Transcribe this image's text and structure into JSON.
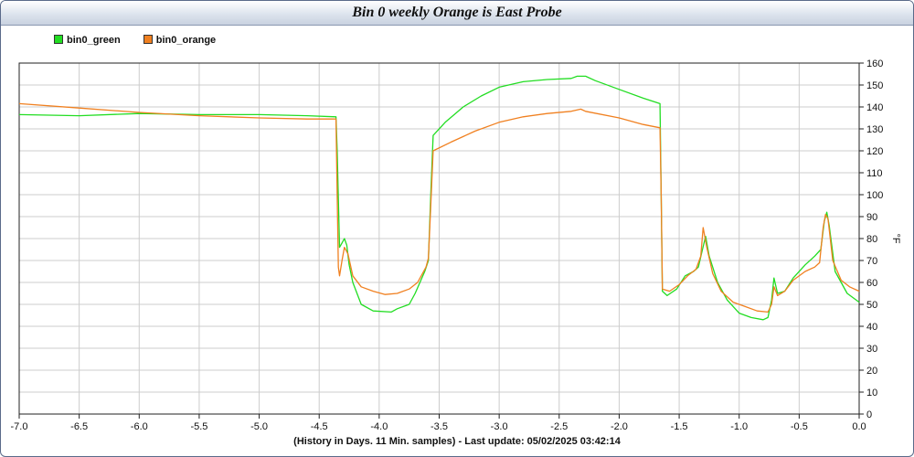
{
  "window": {
    "title": "Bin 0 weekly  Orange is East Probe"
  },
  "legend": [
    {
      "name": "bin0_green",
      "color": "#22dd22"
    },
    {
      "name": "bin0_orange",
      "color": "#f08020"
    }
  ],
  "footer": {
    "text": "(History in Days. 11 Min. samples) - Last update: 05/02/2025 03:42:14"
  },
  "chart_data": {
    "type": "line",
    "title": "Bin 0 weekly  Orange is East Probe",
    "xlabel": "(History in Days. 11 Min. samples) - Last update: 05/02/2025 03:42:14",
    "ylabel": "°F",
    "xlim": [
      -7.0,
      0.0
    ],
    "ylim": [
      0,
      160
    ],
    "x_ticks": [
      "-7.0",
      "-6.5",
      "-6.0",
      "-5.5",
      "-5.0",
      "-4.5",
      "-4.0",
      "-3.5",
      "-3.0",
      "-2.5",
      "-2.0",
      "-1.5",
      "-1.0",
      "-0.5",
      "0.0"
    ],
    "y_ticks": [
      "0",
      "10",
      "20",
      "30",
      "40",
      "50",
      "60",
      "70",
      "80",
      "90",
      "100",
      "110",
      "120",
      "130",
      "140",
      "150",
      "160"
    ],
    "y_axis_side": "right",
    "grid": true,
    "legend_position": "top-left",
    "series": [
      {
        "name": "bin0_green",
        "color": "#22dd22",
        "points": [
          [
            -7.0,
            136.5
          ],
          [
            -6.5,
            136
          ],
          [
            -6.0,
            137
          ],
          [
            -5.5,
            136.5
          ],
          [
            -5.0,
            136.5
          ],
          [
            -4.6,
            136
          ],
          [
            -4.36,
            135.5
          ],
          [
            -4.35,
            120
          ],
          [
            -4.33,
            76
          ],
          [
            -4.31,
            78
          ],
          [
            -4.29,
            80
          ],
          [
            -4.27,
            77
          ],
          [
            -4.25,
            68
          ],
          [
            -4.22,
            60
          ],
          [
            -4.15,
            50
          ],
          [
            -4.05,
            47
          ],
          [
            -3.9,
            46.5
          ],
          [
            -3.85,
            48
          ],
          [
            -3.75,
            50
          ],
          [
            -3.7,
            55
          ],
          [
            -3.62,
            65
          ],
          [
            -3.59,
            70
          ],
          [
            -3.57,
            100
          ],
          [
            -3.55,
            127
          ],
          [
            -3.45,
            133
          ],
          [
            -3.3,
            140
          ],
          [
            -3.15,
            145
          ],
          [
            -3.0,
            149
          ],
          [
            -2.8,
            151.5
          ],
          [
            -2.6,
            152.5
          ],
          [
            -2.4,
            153
          ],
          [
            -2.35,
            154
          ],
          [
            -2.28,
            154
          ],
          [
            -2.2,
            152
          ],
          [
            -2.0,
            148
          ],
          [
            -1.8,
            144
          ],
          [
            -1.66,
            141.5
          ],
          [
            -1.65,
            100
          ],
          [
            -1.64,
            56
          ],
          [
            -1.6,
            54
          ],
          [
            -1.52,
            57
          ],
          [
            -1.45,
            63
          ],
          [
            -1.38,
            65
          ],
          [
            -1.34,
            67
          ],
          [
            -1.31,
            74
          ],
          [
            -1.28,
            81
          ],
          [
            -1.25,
            72
          ],
          [
            -1.18,
            60
          ],
          [
            -1.1,
            52
          ],
          [
            -1.0,
            46
          ],
          [
            -0.9,
            44
          ],
          [
            -0.8,
            43
          ],
          [
            -0.76,
            44
          ],
          [
            -0.73,
            52
          ],
          [
            -0.71,
            62
          ],
          [
            -0.68,
            55
          ],
          [
            -0.62,
            56
          ],
          [
            -0.55,
            62
          ],
          [
            -0.45,
            68
          ],
          [
            -0.37,
            72
          ],
          [
            -0.32,
            75
          ],
          [
            -0.29,
            88
          ],
          [
            -0.27,
            92
          ],
          [
            -0.25,
            86
          ],
          [
            -0.2,
            65
          ],
          [
            -0.1,
            55
          ],
          [
            0.0,
            51
          ]
        ]
      },
      {
        "name": "bin0_orange",
        "color": "#f08020",
        "points": [
          [
            -7.0,
            141.5
          ],
          [
            -6.5,
            139.5
          ],
          [
            -6.0,
            137.5
          ],
          [
            -5.5,
            136
          ],
          [
            -5.0,
            135
          ],
          [
            -4.6,
            134.5
          ],
          [
            -4.36,
            134.5
          ],
          [
            -4.35,
            100
          ],
          [
            -4.34,
            67
          ],
          [
            -4.33,
            63
          ],
          [
            -4.31,
            70
          ],
          [
            -4.29,
            76
          ],
          [
            -4.26,
            73
          ],
          [
            -4.22,
            63
          ],
          [
            -4.15,
            58
          ],
          [
            -4.05,
            56
          ],
          [
            -3.95,
            54.5
          ],
          [
            -3.85,
            55
          ],
          [
            -3.75,
            57
          ],
          [
            -3.68,
            60
          ],
          [
            -3.61,
            67
          ],
          [
            -3.59,
            71
          ],
          [
            -3.57,
            95
          ],
          [
            -3.55,
            120
          ],
          [
            -3.4,
            124
          ],
          [
            -3.2,
            129
          ],
          [
            -3.0,
            133
          ],
          [
            -2.8,
            135.5
          ],
          [
            -2.6,
            137
          ],
          [
            -2.4,
            138
          ],
          [
            -2.32,
            139
          ],
          [
            -2.28,
            138
          ],
          [
            -2.0,
            135
          ],
          [
            -1.8,
            132
          ],
          [
            -1.66,
            130.5
          ],
          [
            -1.65,
            100
          ],
          [
            -1.64,
            57
          ],
          [
            -1.58,
            56
          ],
          [
            -1.5,
            59
          ],
          [
            -1.43,
            63
          ],
          [
            -1.36,
            66
          ],
          [
            -1.32,
            72
          ],
          [
            -1.3,
            85
          ],
          [
            -1.27,
            76
          ],
          [
            -1.22,
            64
          ],
          [
            -1.15,
            56
          ],
          [
            -1.05,
            51
          ],
          [
            -0.95,
            49
          ],
          [
            -0.85,
            47
          ],
          [
            -0.76,
            46.5
          ],
          [
            -0.73,
            50
          ],
          [
            -0.71,
            58
          ],
          [
            -0.68,
            54
          ],
          [
            -0.62,
            56
          ],
          [
            -0.55,
            61
          ],
          [
            -0.45,
            65
          ],
          [
            -0.37,
            67
          ],
          [
            -0.33,
            69
          ],
          [
            -0.3,
            85
          ],
          [
            -0.28,
            91
          ],
          [
            -0.26,
            89
          ],
          [
            -0.22,
            70
          ],
          [
            -0.15,
            61
          ],
          [
            -0.08,
            58
          ],
          [
            0.0,
            56
          ]
        ]
      }
    ]
  }
}
